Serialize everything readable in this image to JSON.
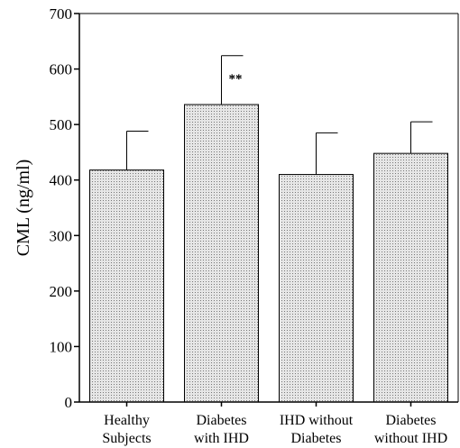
{
  "chart_data": {
    "type": "bar",
    "ylabel": "CML (ng/ml)",
    "ylim": [
      0,
      700
    ],
    "yticks": [
      0,
      100,
      200,
      300,
      400,
      500,
      600,
      700
    ],
    "categories": [
      [
        "Healthy",
        "Subjects"
      ],
      [
        "Diabetes",
        "with IHD"
      ],
      [
        "IHD without",
        "Diabetes"
      ],
      [
        "Diabetes",
        "without IHD"
      ]
    ],
    "values": [
      418,
      536,
      410,
      448
    ],
    "error_upper": [
      488,
      624,
      485,
      505
    ],
    "annotations": [
      {
        "category_index": 1,
        "text": "**"
      }
    ],
    "bar_fill": "#d4d4d4",
    "grid": false
  }
}
